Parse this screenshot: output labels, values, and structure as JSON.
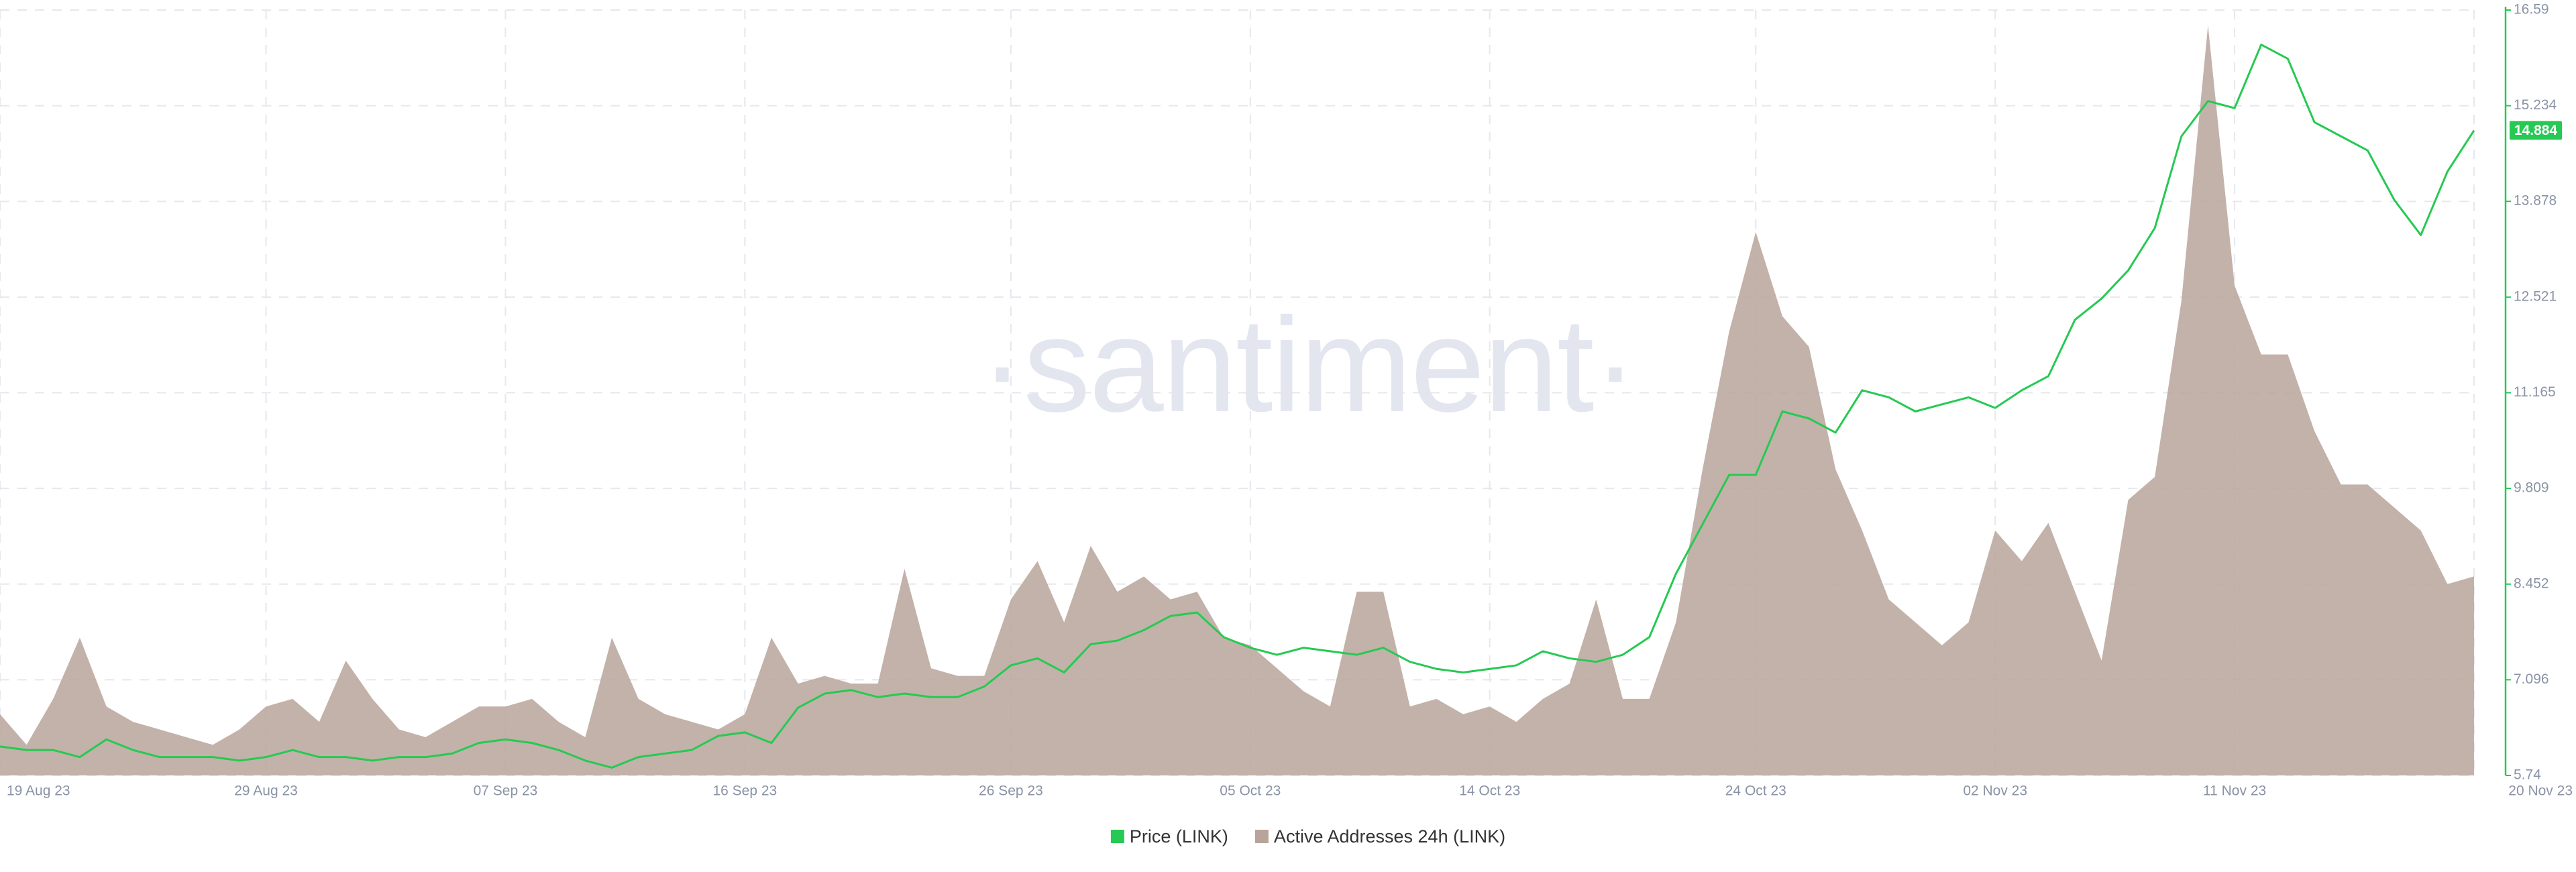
{
  "chart_data": {
    "type": "line-area",
    "watermark": "·santiment·",
    "x": [
      "2023-08-19",
      "2023-08-20",
      "2023-08-21",
      "2023-08-22",
      "2023-08-23",
      "2023-08-24",
      "2023-08-25",
      "2023-08-26",
      "2023-08-27",
      "2023-08-28",
      "2023-08-29",
      "2023-08-30",
      "2023-08-31",
      "2023-09-01",
      "2023-09-02",
      "2023-09-03",
      "2023-09-04",
      "2023-09-05",
      "2023-09-06",
      "2023-09-07",
      "2023-09-08",
      "2023-09-09",
      "2023-09-10",
      "2023-09-11",
      "2023-09-12",
      "2023-09-13",
      "2023-09-14",
      "2023-09-15",
      "2023-09-16",
      "2023-09-17",
      "2023-09-18",
      "2023-09-19",
      "2023-09-20",
      "2023-09-21",
      "2023-09-22",
      "2023-09-23",
      "2023-09-24",
      "2023-09-25",
      "2023-09-26",
      "2023-09-27",
      "2023-09-28",
      "2023-09-29",
      "2023-09-30",
      "2023-10-01",
      "2023-10-02",
      "2023-10-03",
      "2023-10-04",
      "2023-10-05",
      "2023-10-06",
      "2023-10-07",
      "2023-10-08",
      "2023-10-09",
      "2023-10-10",
      "2023-10-11",
      "2023-10-12",
      "2023-10-13",
      "2023-10-14",
      "2023-10-15",
      "2023-10-16",
      "2023-10-17",
      "2023-10-18",
      "2023-10-19",
      "2023-10-20",
      "2023-10-21",
      "2023-10-22",
      "2023-10-23",
      "2023-10-24",
      "2023-10-25",
      "2023-10-26",
      "2023-10-27",
      "2023-10-28",
      "2023-10-29",
      "2023-10-30",
      "2023-10-31",
      "2023-11-01",
      "2023-11-02",
      "2023-11-03",
      "2023-11-04",
      "2023-11-05",
      "2023-11-06",
      "2023-11-07",
      "2023-11-08",
      "2023-11-09",
      "2023-11-10",
      "2023-11-11",
      "2023-11-12",
      "2023-11-13",
      "2023-11-14",
      "2023-11-15",
      "2023-11-16",
      "2023-11-17",
      "2023-11-18",
      "2023-11-19",
      "2023-11-20"
    ],
    "series": [
      {
        "name": "Price (LINK)",
        "color": "#26c953",
        "axis": "y",
        "kind": "line",
        "values": [
          6.15,
          6.1,
          6.1,
          6.0,
          6.25,
          6.1,
          6.0,
          6.0,
          6.0,
          5.95,
          6.0,
          6.1,
          6.0,
          6.0,
          5.95,
          6.0,
          6.0,
          6.05,
          6.2,
          6.25,
          6.2,
          6.1,
          5.95,
          5.85,
          6.0,
          6.05,
          6.1,
          6.3,
          6.35,
          6.2,
          6.7,
          6.9,
          6.95,
          6.85,
          6.9,
          6.85,
          6.85,
          7.0,
          7.3,
          7.4,
          7.2,
          7.6,
          7.65,
          7.8,
          8.0,
          8.05,
          7.7,
          7.55,
          7.45,
          7.55,
          7.5,
          7.45,
          7.55,
          7.35,
          7.25,
          7.2,
          7.25,
          7.3,
          7.5,
          7.4,
          7.35,
          7.45,
          7.7,
          8.6,
          9.3,
          10.0,
          10.0,
          10.9,
          10.8,
          10.6,
          11.2,
          11.1,
          10.9,
          11.0,
          11.1,
          10.95,
          11.2,
          11.4,
          12.2,
          12.5,
          12.9,
          13.5,
          14.8,
          15.3,
          15.2,
          16.1,
          15.9,
          15.0,
          14.8,
          14.6,
          13.9,
          13.4,
          14.3,
          14.884
        ]
      },
      {
        "name": "Active Addresses 24h (LINK)",
        "color": "#b8a49a",
        "axis": "y2",
        "kind": "area",
        "values": [
          800,
          400,
          1000,
          1800,
          900,
          700,
          600,
          500,
          400,
          600,
          900,
          1000,
          700,
          1500,
          1000,
          600,
          500,
          700,
          900,
          900,
          1000,
          700,
          500,
          1800,
          1000,
          800,
          700,
          600,
          800,
          1800,
          1200,
          1300,
          1200,
          1200,
          2700,
          1400,
          1300,
          1300,
          2300,
          2800,
          2000,
          3000,
          2400,
          2600,
          2300,
          2400,
          1800,
          1700,
          1400,
          1100,
          900,
          2400,
          2400,
          900,
          1000,
          800,
          900,
          700,
          1000,
          1200,
          2300,
          1000,
          1000,
          2000,
          4000,
          5800,
          7100,
          6000,
          5600,
          4000,
          3200,
          2300,
          2000,
          1700,
          2000,
          3200,
          2800,
          3300,
          2400,
          1500,
          3600,
          3900,
          6200,
          9800,
          6400,
          5500,
          5500,
          4500,
          3800,
          3800,
          3500,
          3200,
          2500,
          2600
        ]
      }
    ],
    "xlim": [
      "2023-08-19",
      "2023-11-20"
    ],
    "xticks": [
      {
        "value": "2023-08-19",
        "label": "19 Aug 23"
      },
      {
        "value": "2023-08-29",
        "label": "29 Aug 23"
      },
      {
        "value": "2023-09-07",
        "label": "07 Sep 23"
      },
      {
        "value": "2023-09-16",
        "label": "16 Sep 23"
      },
      {
        "value": "2023-09-26",
        "label": "26 Sep 23"
      },
      {
        "value": "2023-10-05",
        "label": "05 Oct 23"
      },
      {
        "value": "2023-10-14",
        "label": "14 Oct 23"
      },
      {
        "value": "2023-10-24",
        "label": "24 Oct 23"
      },
      {
        "value": "2023-11-02",
        "label": "02 Nov 23"
      },
      {
        "value": "2023-11-11",
        "label": "11 Nov 23"
      },
      {
        "value": "2023-11-20",
        "label": "20 Nov 23"
      }
    ],
    "ylim": [
      5.74,
      16.59
    ],
    "yticks": [
      5.74,
      7.096,
      8.452,
      9.809,
      11.165,
      12.521,
      13.878,
      15.234,
      16.59
    ],
    "y2lim": [
      0,
      10000
    ],
    "grid": true,
    "legend": "bottom"
  }
}
